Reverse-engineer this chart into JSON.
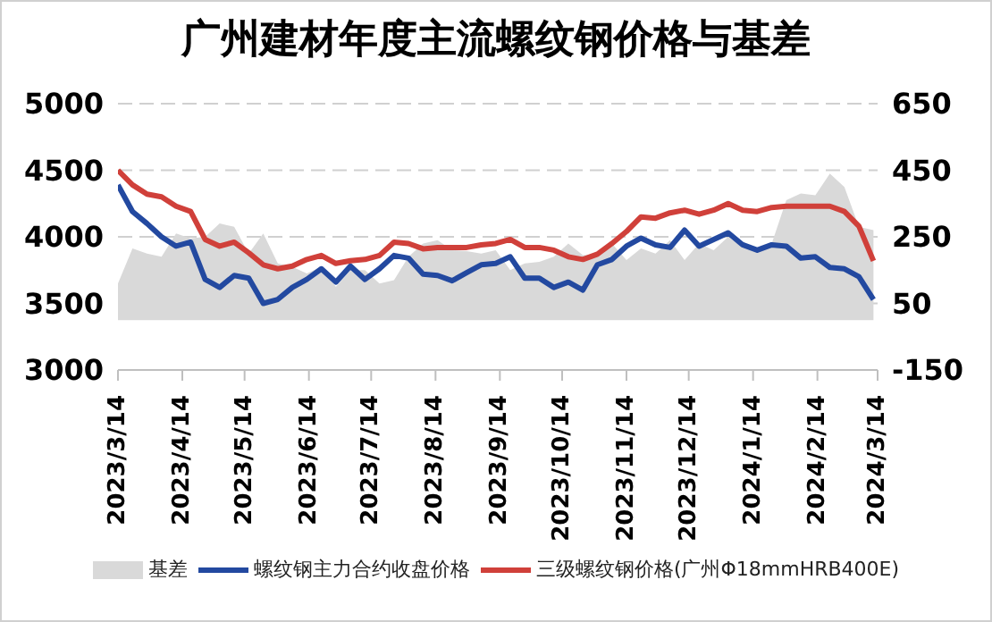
{
  "chart_data": {
    "type": "line",
    "title": "广州建材年度主流螺纹钢价格与基差",
    "x": [
      "2023-03-14",
      "2023-03-21",
      "2023-03-28",
      "2023-04-04",
      "2023-04-11",
      "2023-04-18",
      "2023-04-25",
      "2023-05-02",
      "2023-05-09",
      "2023-05-16",
      "2023-05-23",
      "2023-05-30",
      "2023-06-06",
      "2023-06-13",
      "2023-06-20",
      "2023-06-27",
      "2023-07-04",
      "2023-07-11",
      "2023-07-18",
      "2023-07-25",
      "2023-08-01",
      "2023-08-08",
      "2023-08-15",
      "2023-08-22",
      "2023-08-29",
      "2023-09-05",
      "2023-09-12",
      "2023-09-19",
      "2023-09-26",
      "2023-10-03",
      "2023-10-10",
      "2023-10-17",
      "2023-10-24",
      "2023-10-31",
      "2023-11-07",
      "2023-11-14",
      "2023-11-21",
      "2023-11-28",
      "2023-12-05",
      "2023-12-12",
      "2023-12-19",
      "2023-12-26",
      "2024-01-02",
      "2024-01-09",
      "2024-01-16",
      "2024-01-23",
      "2024-01-30",
      "2024-02-06",
      "2024-02-13",
      "2024-02-20",
      "2024-02-27",
      "2024-03-05",
      "2024-03-12"
    ],
    "series": [
      {
        "name": "基差",
        "type": "area",
        "axis": "y2",
        "color": "#d9d9d9",
        "values": [
          110,
          215,
          200,
          190,
          260,
          245,
          250,
          290,
          280,
          200,
          260,
          170,
          160,
          140,
          160,
          100,
          150,
          150,
          110,
          120,
          190,
          230,
          240,
          210,
          207,
          200,
          210,
          150,
          170,
          175,
          190,
          230,
          195,
          196,
          230,
          180,
          215,
          200,
          240,
          180,
          230,
          210,
          250,
          220,
          205,
          230,
          360,
          380,
          375,
          440,
          400,
          280,
          270
        ]
      },
      {
        "name": "螺纹钢主力合约收盘价格",
        "color": "#2349a0",
        "values": [
          4390,
          4190,
          4100,
          4000,
          3930,
          3960,
          3680,
          3620,
          3710,
          3690,
          3500,
          3530,
          3620,
          3680,
          3760,
          3660,
          3780,
          3680,
          3760,
          3860,
          3840,
          3720,
          3710,
          3670,
          3730,
          3790,
          3800,
          3850,
          3690,
          3690,
          3620,
          3660,
          3600,
          3790,
          3830,
          3930,
          3990,
          3940,
          3920,
          4050,
          3930,
          3980,
          4030,
          3940,
          3900,
          3940,
          3930,
          3840,
          3850,
          3770,
          3760,
          3700,
          3530
        ]
      },
      {
        "name": "三级螺纹钢价格(广州Φ18mmHRB400E)",
        "color": "#d0403a",
        "values": [
          4500,
          4390,
          4320,
          4300,
          4230,
          4190,
          3980,
          3930,
          3960,
          3880,
          3790,
          3760,
          3780,
          3830,
          3860,
          3800,
          3820,
          3830,
          3860,
          3960,
          3950,
          3910,
          3920,
          3920,
          3920,
          3940,
          3950,
          3980,
          3920,
          3920,
          3900,
          3850,
          3830,
          3870,
          3950,
          4040,
          4150,
          4140,
          4180,
          4200,
          4170,
          4200,
          4250,
          4200,
          4190,
          4220,
          4230,
          4230,
          4230,
          4230,
          4190,
          4080,
          3820
        ]
      }
    ],
    "xlim": [
      "2023-03-14",
      "2024-03-14"
    ],
    "xticks": [
      {
        "value": "2023-03-14",
        "label": "2023/3/14"
      },
      {
        "value": "2023-04-14",
        "label": "2023/4/14"
      },
      {
        "value": "2023-05-14",
        "label": "2023/5/14"
      },
      {
        "value": "2023-06-14",
        "label": "2023/6/14"
      },
      {
        "value": "2023-07-14",
        "label": "2023/7/14"
      },
      {
        "value": "2023-08-14",
        "label": "2023/8/14"
      },
      {
        "value": "2023-09-14",
        "label": "2023/9/14"
      },
      {
        "value": "2023-10-14",
        "label": "2023/10/14"
      },
      {
        "value": "2023-11-14",
        "label": "2023/11/14"
      },
      {
        "value": "2023-12-14",
        "label": "2023/12/14"
      },
      {
        "value": "2024-01-14",
        "label": "2024/1/14"
      },
      {
        "value": "2024-02-14",
        "label": "2024/2/14"
      },
      {
        "value": "2024-03-14",
        "label": "2024/3/14"
      }
    ],
    "ylim": [
      3000,
      5000
    ],
    "yticks": [
      3000,
      3500,
      4000,
      4500,
      5000
    ],
    "y2lim": [
      -150,
      650
    ],
    "y2ticks": [
      -150,
      50,
      250,
      450,
      650
    ],
    "grid": "y",
    "legend": "bottom",
    "marker": "none",
    "line_style": "solid"
  }
}
